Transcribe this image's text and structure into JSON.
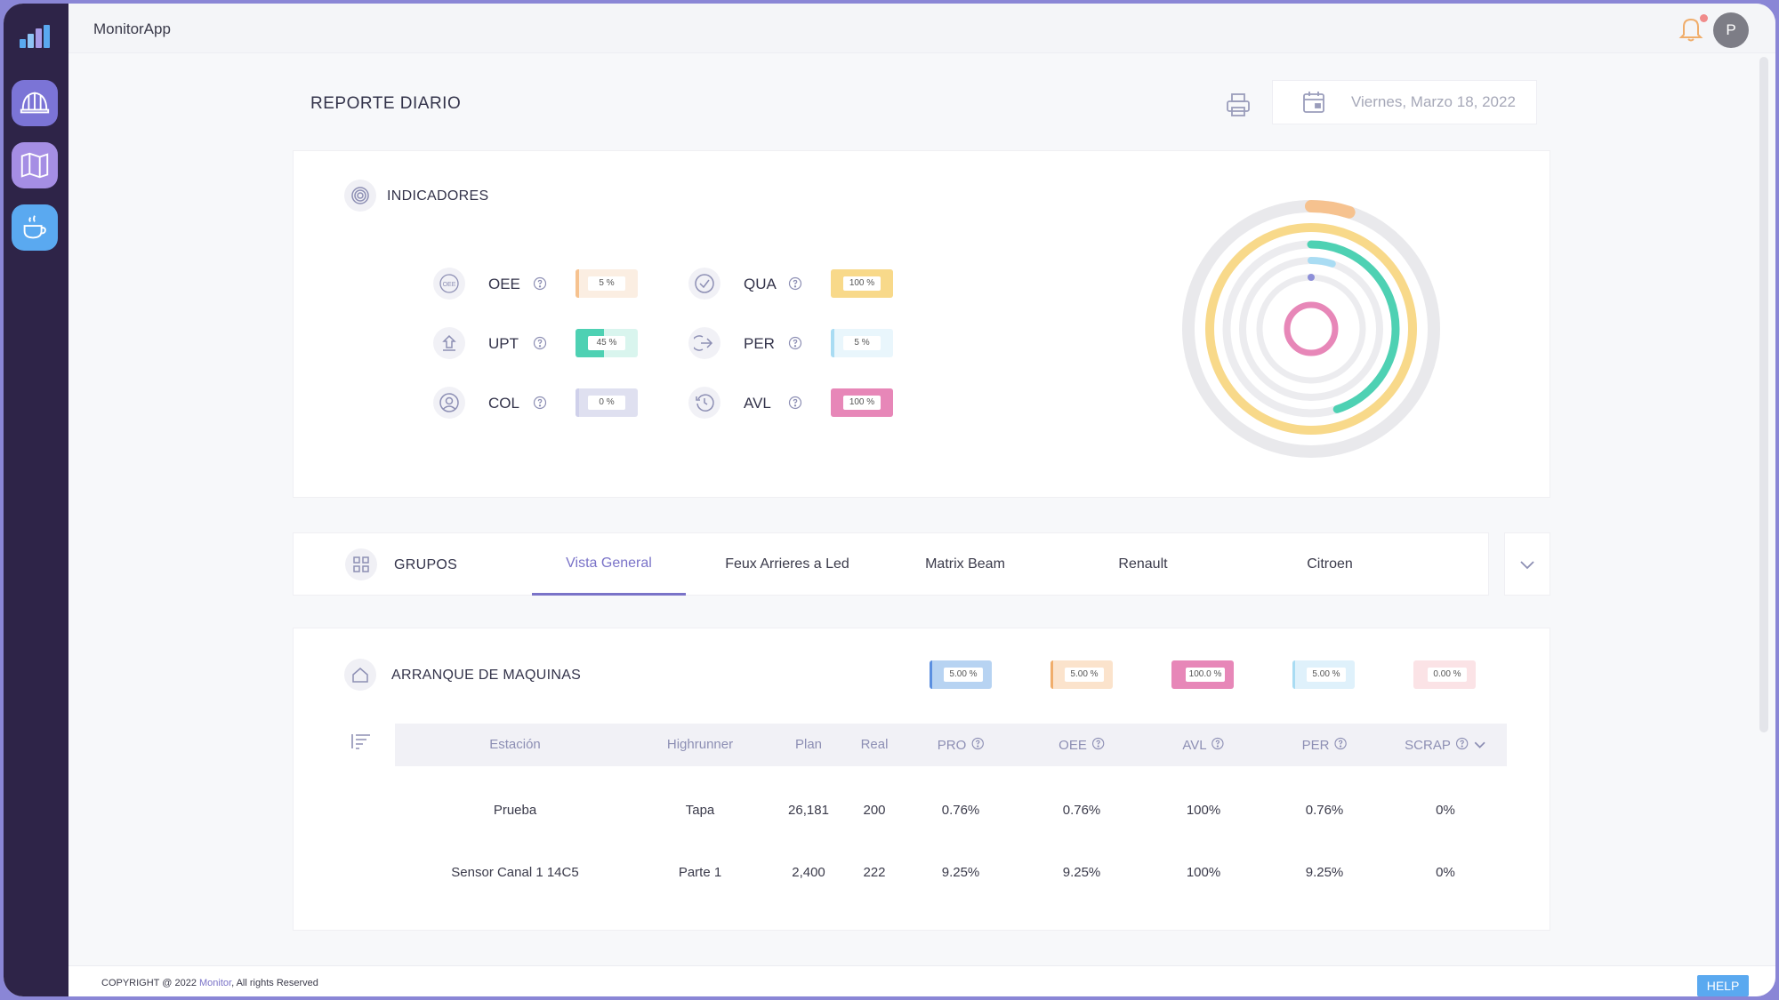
{
  "app": {
    "title": "MonitorApp",
    "avatar_initial": "P"
  },
  "page": {
    "title": "REPORTE DIARIO",
    "date": "Viernes, Marzo 18, 2022"
  },
  "indicators": {
    "title": "INDICADORES",
    "items": [
      {
        "label": "OEE",
        "value_text": "5 %",
        "value": 0.05,
        "color": "#f6c28f",
        "bg": "#fbeee2",
        "icon": "oee-icon"
      },
      {
        "label": "QUA",
        "value_text": "100 %",
        "value": 1.0,
        "color": "#f8d98a",
        "bg": "#fdf4dd",
        "icon": "check-circle-icon"
      },
      {
        "label": "UPT",
        "value_text": "45 %",
        "value": 0.45,
        "color": "#4ed1b3",
        "bg": "#d9f5ee",
        "icon": "upload-icon"
      },
      {
        "label": "PER",
        "value_text": "5 %",
        "value": 0.05,
        "color": "#a9dcf3",
        "bg": "#e9f6fc",
        "icon": "arrow-right-circle-icon"
      },
      {
        "label": "COL",
        "value_text": "0 %",
        "value": 0.0,
        "color": "#cfd0ea",
        "bg": "#dfe0f0",
        "icon": "user-circle-icon"
      },
      {
        "label": "AVL",
        "value_text": "100 %",
        "value": 1.0,
        "color": "#e787b8",
        "bg": "#f7d9e8",
        "icon": "clock-history-icon"
      }
    ]
  },
  "groups": {
    "title": "GRUPOS",
    "tabs": [
      "Vista General",
      "Feux Arrieres a Led",
      "Matrix Beam",
      "Renault",
      "Citroen"
    ],
    "active_tab": "Vista General"
  },
  "machines": {
    "title": "ARRANQUE DE MAQUINAS",
    "kpis": [
      {
        "value_text": "5.00 %",
        "color": "#b7d3f2",
        "accent": "#5b8fe0"
      },
      {
        "value_text": "5.00 %",
        "color": "#fbe3cc",
        "accent": "#f0ad6b"
      },
      {
        "value_text": "100.0 %",
        "color": "#e787b8",
        "accent": "#e787b8"
      },
      {
        "value_text": "5.00 %",
        "color": "#dff1fb",
        "accent": "#a9dcf3"
      },
      {
        "value_text": "0.00 %",
        "color": "#fbe3e6",
        "accent": "#fbe3e6"
      }
    ],
    "columns": [
      "Estación",
      "Highrunner",
      "Plan",
      "Real",
      "PRO",
      "OEE",
      "AVL",
      "PER",
      "SCRAP"
    ],
    "rows": [
      [
        "Prueba",
        "Tapa",
        "26,181",
        "200",
        "0.76%",
        "0.76%",
        "100%",
        "0.76%",
        "0%"
      ],
      [
        "Sensor Canal 1 14C5",
        "Parte 1",
        "2,400",
        "222",
        "9.25%",
        "9.25%",
        "100%",
        "9.25%",
        "0%"
      ]
    ]
  },
  "footer": {
    "copyright_prefix": "COPYRIGHT @ 2022 ",
    "brand": "Monitor",
    "copyright_suffix": ", All rights Reserved",
    "help": "HELP"
  }
}
